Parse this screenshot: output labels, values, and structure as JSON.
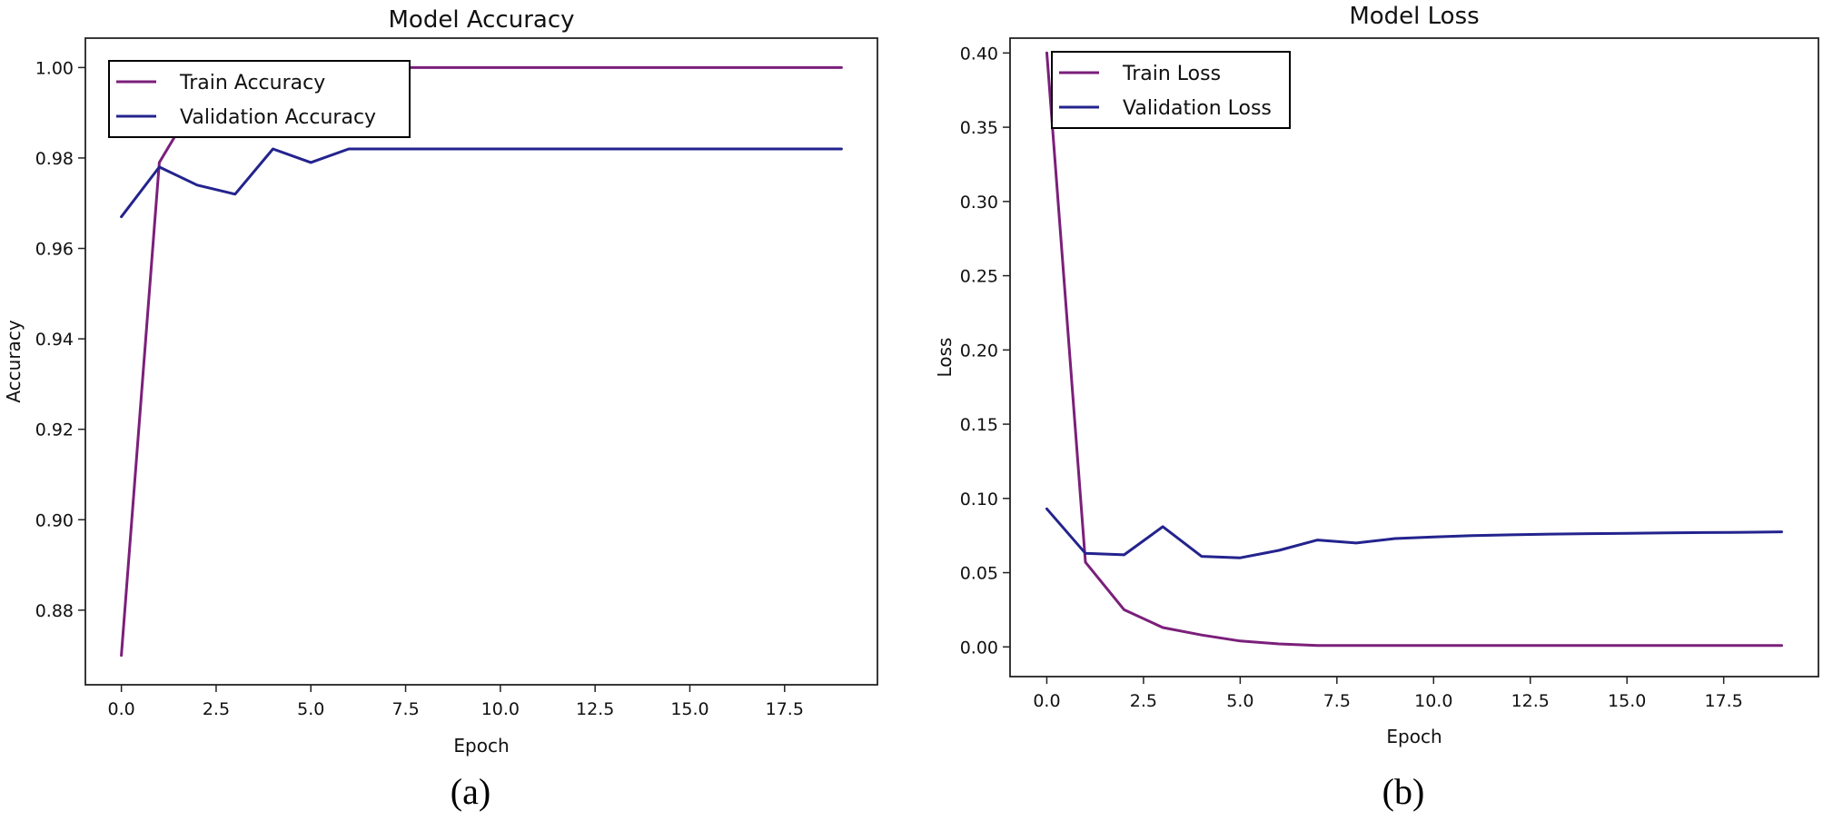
{
  "chart_data": [
    {
      "type": "line",
      "title": "Model Accuracy",
      "xlabel": "Epoch",
      "ylabel": "Accuracy",
      "caption": "(a)",
      "xlim": [
        -0.95,
        19.95
      ],
      "ylim": [
        0.8635,
        1.0065
      ],
      "xticks": [
        0,
        2.5,
        5,
        7.5,
        10,
        12.5,
        15,
        17.5
      ],
      "xtick_labels": [
        "0.0",
        "2.5",
        "5.0",
        "7.5",
        "10.0",
        "12.5",
        "15.0",
        "17.5"
      ],
      "yticks": [
        0.88,
        0.9,
        0.92,
        0.94,
        0.96,
        0.98,
        1.0
      ],
      "ytick_labels": [
        "0.88",
        "0.90",
        "0.92",
        "0.94",
        "0.96",
        "0.98",
        "1.00"
      ],
      "grid": false,
      "legend": "upper-left",
      "series": [
        {
          "name": "Train Accuracy",
          "color": "#7b1f7a",
          "x": [
            0,
            1,
            2,
            3,
            4,
            5,
            6,
            7,
            8,
            9,
            10,
            11,
            12,
            13,
            14,
            15,
            16,
            17,
            18,
            19
          ],
          "y": [
            0.87,
            0.979,
            0.993,
            0.998,
            1.0,
            1.0,
            1.0,
            1.0,
            1.0,
            1.0,
            1.0,
            1.0,
            1.0,
            1.0,
            1.0,
            1.0,
            1.0,
            1.0,
            1.0,
            1.0
          ]
        },
        {
          "name": "Validation Accuracy",
          "color": "#23238e",
          "x": [
            0,
            1,
            2,
            3,
            4,
            5,
            6,
            7,
            8,
            9,
            10,
            11,
            12,
            13,
            14,
            15,
            16,
            17,
            18,
            19
          ],
          "y": [
            0.967,
            0.978,
            0.974,
            0.972,
            0.982,
            0.979,
            0.982,
            0.982,
            0.982,
            0.982,
            0.982,
            0.982,
            0.982,
            0.982,
            0.982,
            0.982,
            0.982,
            0.982,
            0.982,
            0.982
          ]
        }
      ]
    },
    {
      "type": "line",
      "title": "Model Loss",
      "xlabel": "Epoch",
      "ylabel": "Loss",
      "caption": "(b)",
      "xlim": [
        -0.95,
        19.95
      ],
      "ylim": [
        -0.02,
        0.41
      ],
      "xticks": [
        0,
        2.5,
        5,
        7.5,
        10,
        12.5,
        15,
        17.5
      ],
      "xtick_labels": [
        "0.0",
        "2.5",
        "5.0",
        "7.5",
        "10.0",
        "12.5",
        "15.0",
        "17.5"
      ],
      "yticks": [
        0.0,
        0.05,
        0.1,
        0.15,
        0.2,
        0.25,
        0.3,
        0.35,
        0.4
      ],
      "ytick_labels": [
        "0.00",
        "0.05",
        "0.10",
        "0.15",
        "0.20",
        "0.25",
        "0.30",
        "0.35",
        "0.40"
      ],
      "grid": false,
      "legend": "upper-left",
      "series": [
        {
          "name": "Train Loss",
          "color": "#7b1f7a",
          "x": [
            0,
            1,
            2,
            3,
            4,
            5,
            6,
            7,
            8,
            9,
            10,
            11,
            12,
            13,
            14,
            15,
            16,
            17,
            18,
            19
          ],
          "y": [
            0.4,
            0.057,
            0.025,
            0.013,
            0.008,
            0.004,
            0.002,
            0.001,
            0.001,
            0.001,
            0.001,
            0.001,
            0.001,
            0.001,
            0.001,
            0.001,
            0.001,
            0.001,
            0.001,
            0.001
          ]
        },
        {
          "name": "Validation Loss",
          "color": "#23238e",
          "x": [
            0,
            1,
            2,
            3,
            4,
            5,
            6,
            7,
            8,
            9,
            10,
            11,
            12,
            13,
            14,
            15,
            16,
            17,
            18,
            19
          ],
          "y": [
            0.093,
            0.063,
            0.062,
            0.081,
            0.061,
            0.06,
            0.065,
            0.072,
            0.07,
            0.073,
            0.074,
            0.075,
            0.0755,
            0.076,
            0.0763,
            0.0765,
            0.0768,
            0.077,
            0.0772,
            0.0775
          ]
        }
      ]
    }
  ]
}
